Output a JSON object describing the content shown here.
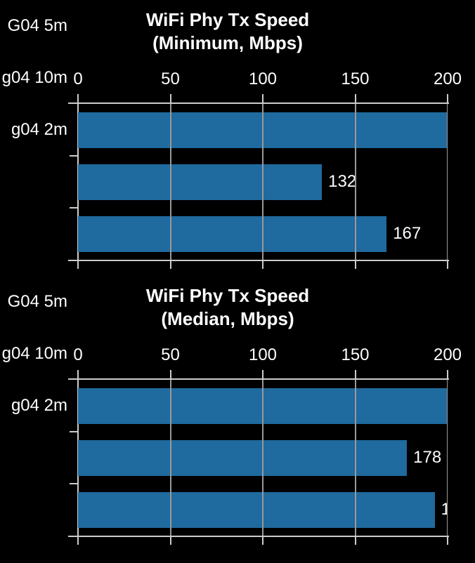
{
  "theme": {
    "background": "#000000",
    "text_color": "#ffffff",
    "bar_color": "#1f6a9e",
    "axis_color": "#cccccc",
    "grid_color": "#999999"
  },
  "chart_data": [
    {
      "type": "bar",
      "orientation": "horizontal",
      "title": "WiFi Phy Tx Speed",
      "subtitle": "(Minimum, Mbps)",
      "categories": [
        "G04 5m",
        "g04 10m",
        "g04 2m"
      ],
      "values": [
        200,
        132,
        167
      ],
      "visible_value_labels": [
        "",
        "132",
        "167"
      ],
      "xlim": [
        0,
        200
      ],
      "xticks": [
        0,
        50,
        100,
        150,
        200
      ],
      "grid": true,
      "legend": "none"
    },
    {
      "type": "bar",
      "orientation": "horizontal",
      "title": "WiFi Phy Tx Speed",
      "subtitle": "(Median, Mbps)",
      "categories": [
        "G04 5m",
        "g04 10m",
        "g04 2m"
      ],
      "values": [
        200,
        178,
        193
      ],
      "visible_value_labels": [
        "",
        "178",
        "1"
      ],
      "xlim": [
        0,
        200
      ],
      "xticks": [
        0,
        50,
        100,
        150,
        200
      ],
      "grid": true,
      "legend": "none"
    }
  ]
}
